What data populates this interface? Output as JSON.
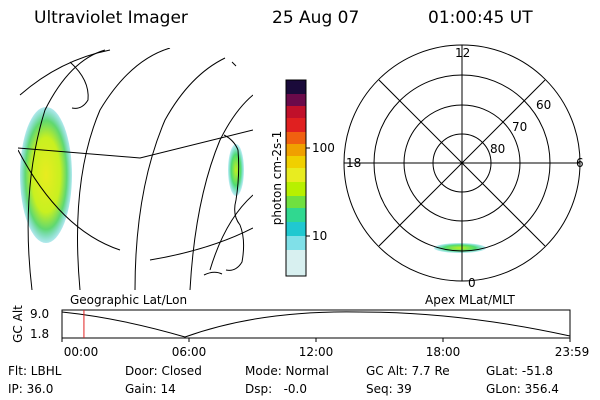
{
  "header": {
    "instrument": "Ultraviolet Imager",
    "date": "25 Aug 07",
    "time": "01:00:45 UT"
  },
  "colorbar": {
    "unit_label": "photon cm-2s-1",
    "ticks": [
      "100",
      "10"
    ],
    "scale": "log",
    "colors": [
      "#1a0a3a",
      "#6a0a4a",
      "#c0102a",
      "#e02020",
      "#f06010",
      "#f0a000",
      "#f0d000",
      "#e8ec20",
      "#b8f000",
      "#70e040",
      "#30d890",
      "#20c8d0",
      "#80e0e8",
      "#d8f0f0"
    ]
  },
  "map_left": {
    "label": "Geographic Lat/Lon"
  },
  "map_right": {
    "label": "Apex MLat/MLT",
    "mlt_labels": [
      "12",
      "18",
      "6",
      "0"
    ],
    "mlat_labels": [
      "60",
      "70",
      "80"
    ]
  },
  "timeline": {
    "ylabel": "GC Alt",
    "ymax": "9.0",
    "ymin": "1.8",
    "xticks": [
      "00:00",
      "06:00",
      "12:00",
      "18:00",
      "23:59"
    ],
    "marker_time": "01:00:45",
    "marker_color": "#e02020"
  },
  "status": {
    "flt": "Flt: LBHL",
    "door": "Door: Closed",
    "mode": "Mode: Normal",
    "gc_alt": "GC Alt: 7.7 Re",
    "glat": "GLat: -51.8",
    "ip": "IP: 36.0",
    "gain": "Gain: 14",
    "dsp": "Dsp:   -0.0",
    "seq": "Seq: 39",
    "glon": "GLon: 356.4"
  }
}
